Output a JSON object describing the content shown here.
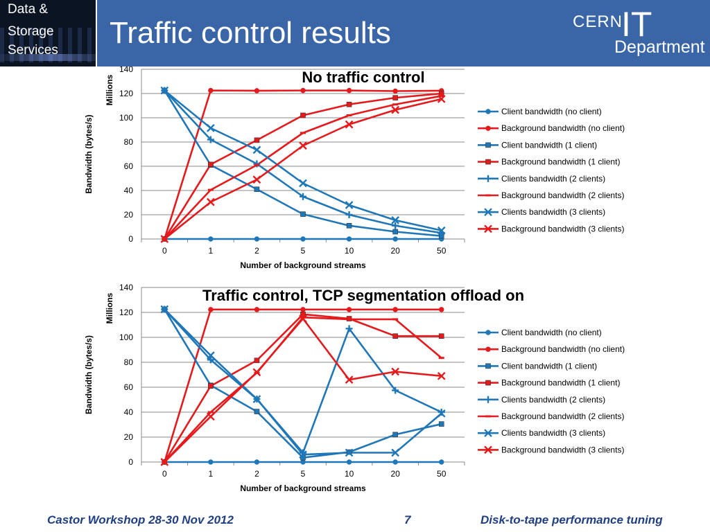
{
  "badge": {
    "line1": "Data &",
    "line2": "Storage",
    "line3": "Services"
  },
  "title": "Traffic control results",
  "logo": {
    "top": "CERN",
    "big": "IT",
    "bottom": "Department"
  },
  "footer": {
    "left": "Castor Workshop 28-30 Nov 2012",
    "page": "7",
    "right": "Disk-to-tape performance tuning"
  },
  "colors": {
    "header": "#3a66a8",
    "blue": "#1f77b8",
    "red": "#e41a1c",
    "footer_text": "#1f3f80"
  },
  "chart_data": [
    {
      "type": "line",
      "title": "No traffic control",
      "xlabel": "Number of background streams",
      "ylabel": "Bandwidth (bytes/s)",
      "yunit": "Millions",
      "ylim": [
        0,
        140
      ],
      "yticks": [
        0,
        20,
        40,
        60,
        80,
        100,
        120,
        140
      ],
      "categories": [
        "0",
        "1",
        "2",
        "5",
        "10",
        "20",
        "50"
      ],
      "grid": "horizontal",
      "legend": "right",
      "series": [
        {
          "name": "Client bandwidth (no client)",
          "color": "#1f77b8",
          "marker": "circle",
          "values": [
            0,
            0,
            0,
            0,
            0,
            0,
            0
          ]
        },
        {
          "name": "Background bandwidth (no client)",
          "color": "#e41a1c",
          "marker": "circle",
          "values": [
            0,
            122.5,
            122.3,
            122.5,
            122.5,
            122,
            122.3
          ]
        },
        {
          "name": "Client bandwidth (1 client)",
          "color": "#1f77b8",
          "marker": "square",
          "values": [
            122.5,
            61,
            41,
            20.5,
            11,
            6,
            2.5
          ]
        },
        {
          "name": "Background bandwidth (1 client)",
          "color": "#e41a1c",
          "marker": "square",
          "values": [
            0,
            61.5,
            81.5,
            102,
            111,
            116.5,
            120
          ]
        },
        {
          "name": "Clients bandwidth (2 clients)",
          "color": "#1f77b8",
          "marker": "plus",
          "values": [
            122.5,
            82,
            62,
            35,
            20,
            11,
            5
          ]
        },
        {
          "name": "Background bandwidth (2 clients)",
          "color": "#e41a1c",
          "marker": "dash",
          "values": [
            0,
            40.5,
            61,
            87.5,
            102,
            111,
            118
          ]
        },
        {
          "name": "Clients bandwidth (3 clients)",
          "color": "#1f77b8",
          "marker": "x",
          "values": [
            122.5,
            91.5,
            73.5,
            46,
            28,
            15.5,
            7
          ]
        },
        {
          "name": "Background bandwidth (3 clients)",
          "color": "#e41a1c",
          "marker": "x",
          "values": [
            0,
            30.5,
            49,
            77,
            94.5,
            106.5,
            115.5
          ]
        }
      ]
    },
    {
      "type": "line",
      "title": "Traffic control, TCP segmentation offload on",
      "xlabel": "Number of background streams",
      "ylabel": "Bandwidth (bytes/s)",
      "yunit": "Millions",
      "ylim": [
        0,
        140
      ],
      "yticks": [
        0,
        20,
        40,
        60,
        80,
        100,
        120,
        140
      ],
      "categories": [
        "0",
        "1",
        "2",
        "5",
        "10",
        "20",
        "50"
      ],
      "grid": "horizontal",
      "legend": "right",
      "series": [
        {
          "name": "Client bandwidth (no client)",
          "color": "#1f77b8",
          "marker": "circle",
          "values": [
            0,
            0,
            0,
            0,
            0,
            0,
            0
          ]
        },
        {
          "name": "Background bandwidth (no client)",
          "color": "#e41a1c",
          "marker": "circle",
          "values": [
            0,
            122.3,
            122.3,
            122.3,
            122.3,
            122.3,
            122.3
          ]
        },
        {
          "name": "Client bandwidth (1 client)",
          "color": "#1f77b8",
          "marker": "square",
          "values": [
            122.5,
            61.5,
            40.5,
            3.5,
            8,
            22,
            30.5
          ]
        },
        {
          "name": "Background bandwidth (1 client)",
          "color": "#e41a1c",
          "marker": "square",
          "values": [
            0,
            61,
            81.5,
            118.5,
            115,
            101,
            101
          ]
        },
        {
          "name": "Clients bandwidth (2 clients)",
          "color": "#1f77b8",
          "marker": "plus",
          "values": [
            122.5,
            82,
            50.5,
            7.5,
            107,
            57.5,
            40
          ]
        },
        {
          "name": "Background bandwidth (2 clients)",
          "color": "#e41a1c",
          "marker": "dash",
          "values": [
            0,
            40,
            71.5,
            116,
            114.5,
            114.5,
            83.5
          ]
        },
        {
          "name": "Clients bandwidth (3 clients)",
          "color": "#1f77b8",
          "marker": "x",
          "values": [
            122.5,
            85.5,
            50.5,
            6,
            7.5,
            7.5,
            39
          ]
        },
        {
          "name": "Background bandwidth (3 clients)",
          "color": "#e41a1c",
          "marker": "x",
          "values": [
            0,
            36.5,
            72,
            115,
            66,
            72.5,
            69
          ]
        }
      ]
    }
  ]
}
